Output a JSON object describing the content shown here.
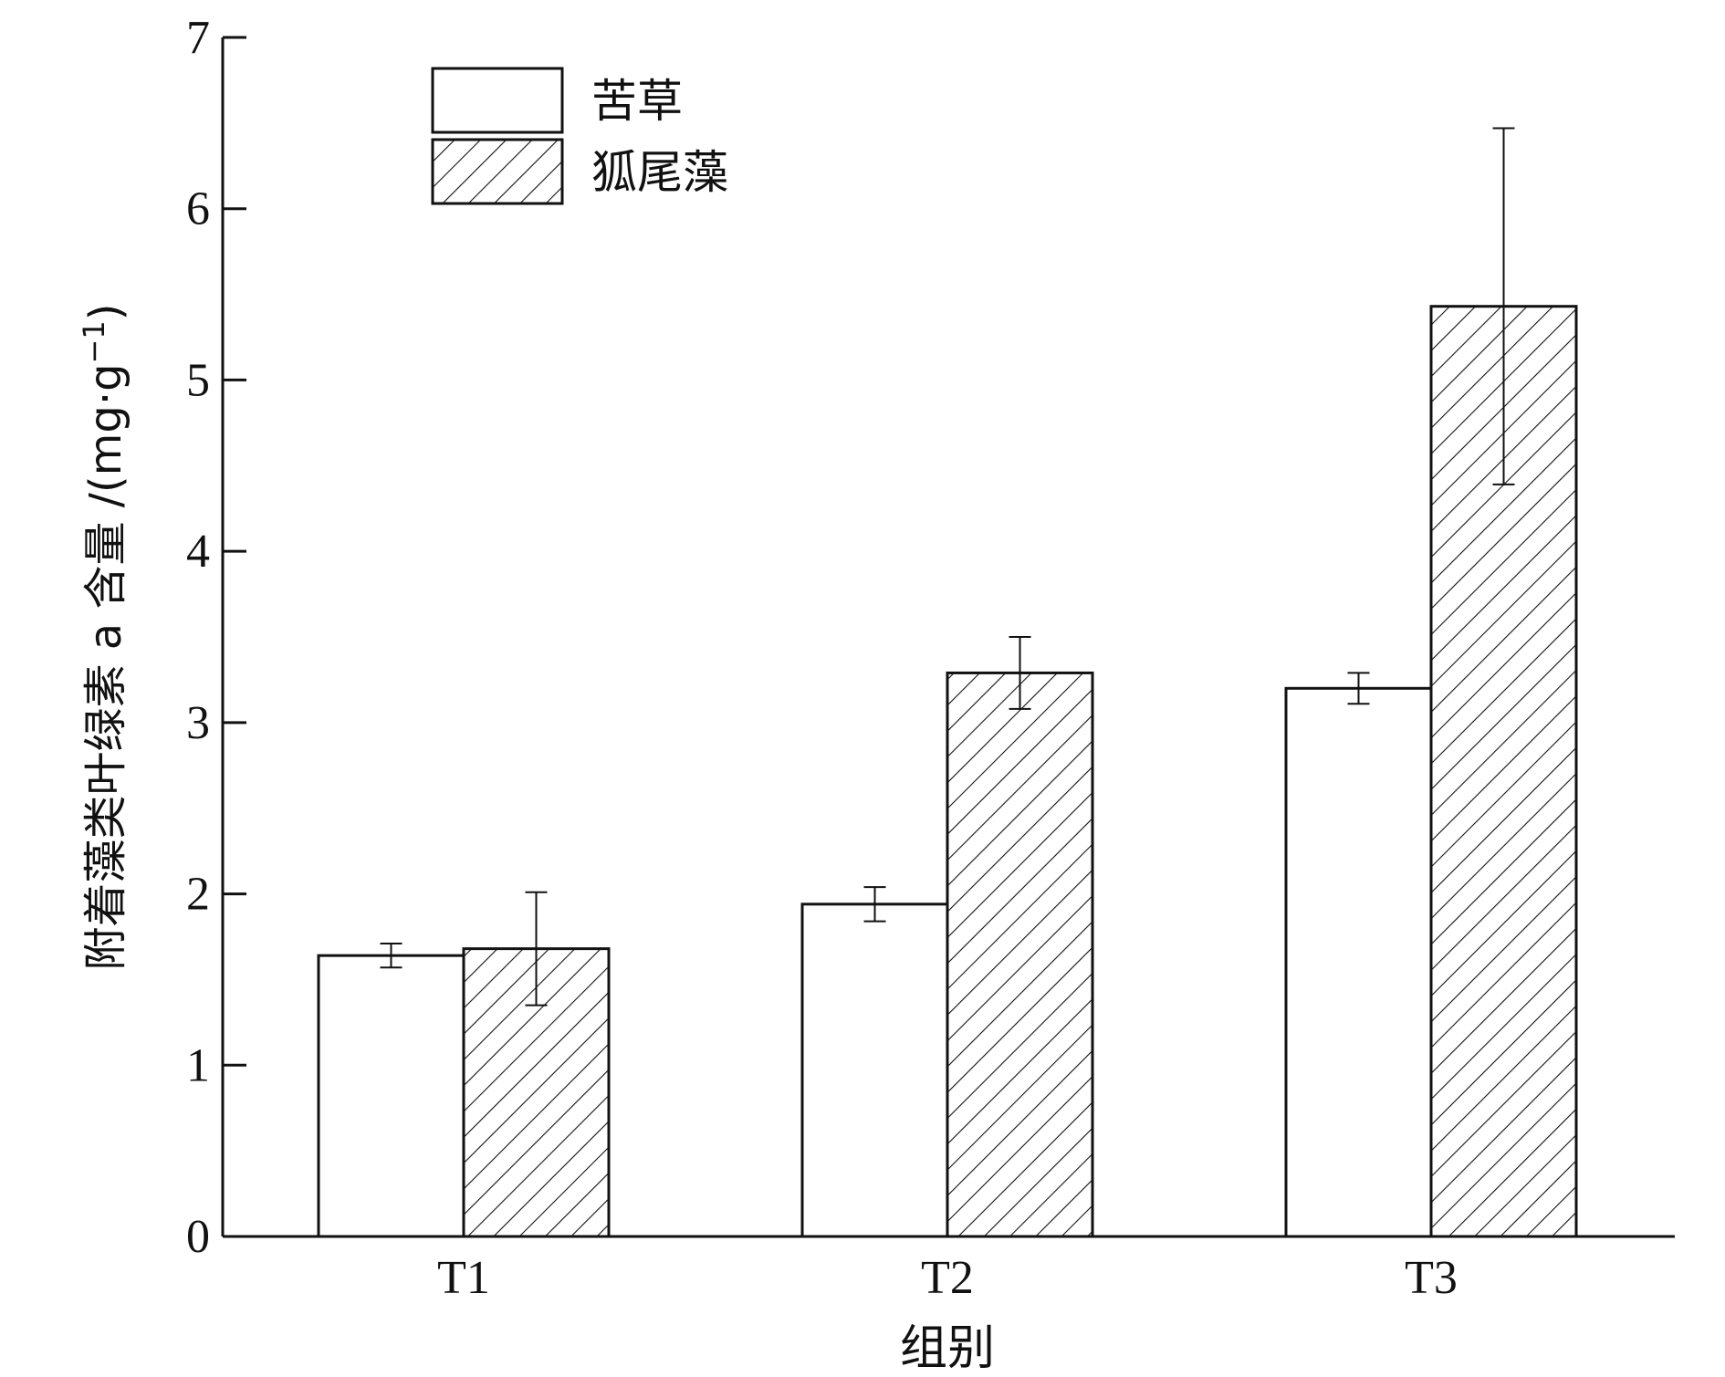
{
  "chart_data": {
    "type": "bar",
    "title": "",
    "xlabel": "组别",
    "ylabel_main": "附着藻类叶绿素 a 含量 /(mg·g",
    "ylabel_sup": "−1",
    "ylabel_close": ")",
    "ylim": [
      0,
      7
    ],
    "yticks": [
      "0",
      "1",
      "2",
      "3",
      "4",
      "5",
      "6",
      "7"
    ],
    "categories": [
      "T1",
      "T2",
      "T3"
    ],
    "legend_position": "top-left",
    "series": [
      {
        "name": "苦草",
        "fill": "plain",
        "values": [
          1.64,
          1.94,
          3.2
        ],
        "errors": [
          0.07,
          0.1,
          0.09
        ]
      },
      {
        "name": "狐尾藻",
        "fill": "hatched",
        "values": [
          1.68,
          3.29,
          5.43
        ],
        "errors": [
          0.33,
          0.21,
          1.04
        ]
      }
    ],
    "grid": false,
    "colors": {
      "axis": "#111111",
      "bar_fill": "#ffffff",
      "hatch": "#111111"
    }
  }
}
